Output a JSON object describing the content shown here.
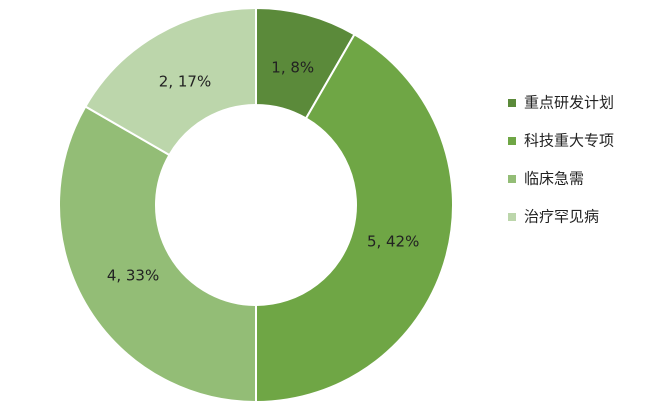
{
  "chart_data": {
    "type": "pie",
    "categories": [
      "重点研发计划",
      "科技重大专项",
      "临床急需",
      "治疗罕见病"
    ],
    "values": [
      1,
      5,
      4,
      2
    ],
    "value_labels": [
      "1, 8%",
      "5, 42%",
      "4, 33%",
      "2, 17%"
    ],
    "colors": [
      "#5b8a3a",
      "#6fa645",
      "#93bd76",
      "#bcd6ab"
    ],
    "donut": true,
    "legend": "right"
  }
}
